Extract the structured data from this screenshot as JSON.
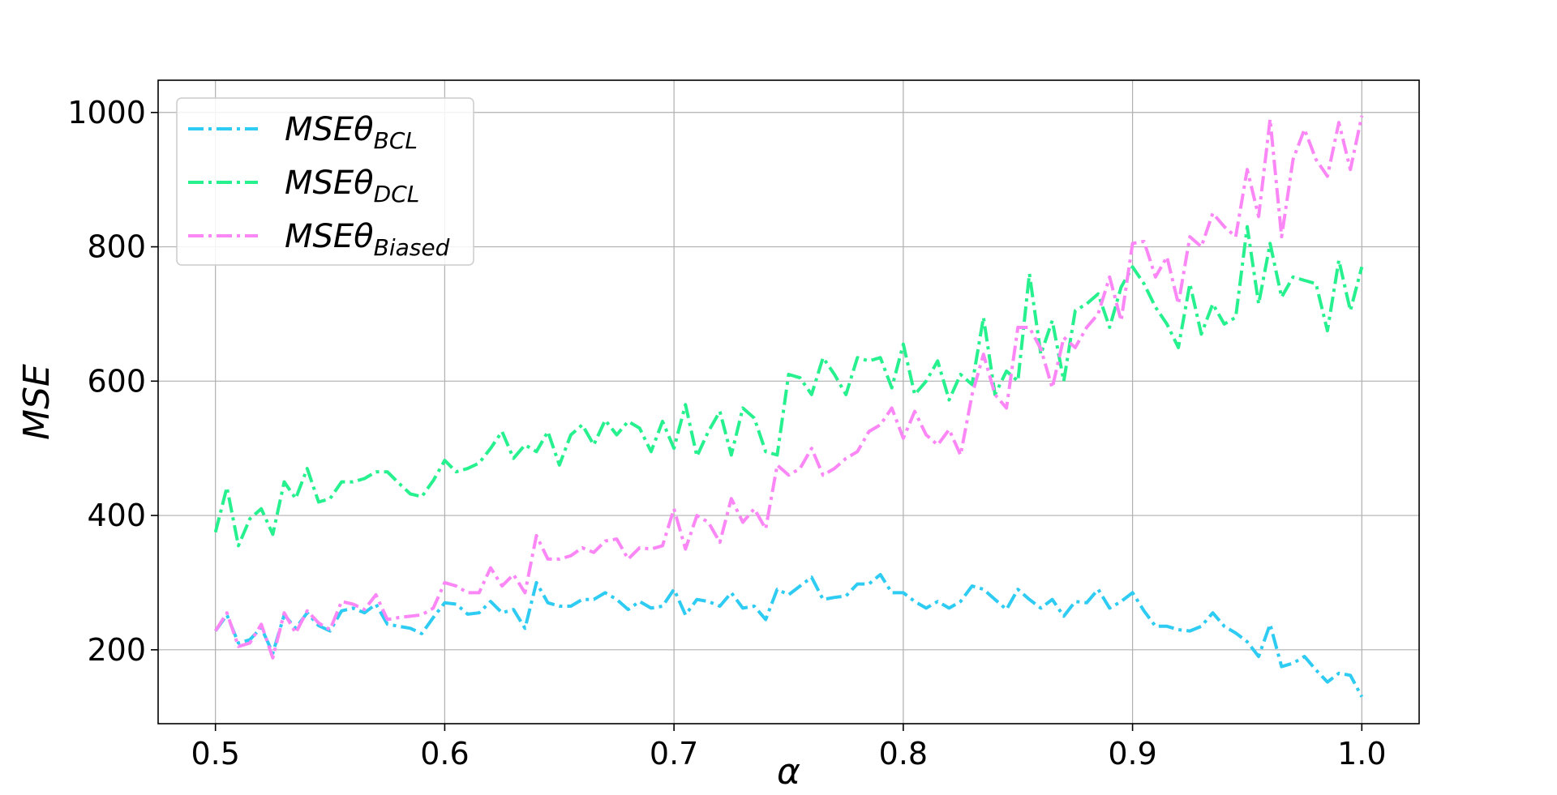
{
  "chart_data": {
    "type": "line",
    "title": "",
    "xlabel": "α",
    "ylabel": "MSE",
    "xlim": [
      0.475,
      1.025
    ],
    "ylim": [
      90,
      1048
    ],
    "xticks": [
      0.5,
      0.6,
      0.7,
      0.8,
      0.9,
      1.0
    ],
    "xtick_labels": [
      "0.5",
      "0.6",
      "0.7",
      "0.8",
      "0.9",
      "1.0"
    ],
    "yticks": [
      200,
      400,
      600,
      800,
      1000
    ],
    "ytick_labels": [
      "200",
      "400",
      "600",
      "800",
      "1000"
    ],
    "grid": true,
    "legend_position": "top-left",
    "x": [
      0.5,
      0.505,
      0.51,
      0.515,
      0.52,
      0.525,
      0.53,
      0.535,
      0.54,
      0.545,
      0.55,
      0.555,
      0.56,
      0.565,
      0.57,
      0.575,
      0.58,
      0.585,
      0.59,
      0.595,
      0.6,
      0.605,
      0.61,
      0.615,
      0.62,
      0.625,
      0.63,
      0.635,
      0.64,
      0.645,
      0.65,
      0.655,
      0.66,
      0.665,
      0.67,
      0.675,
      0.68,
      0.685,
      0.69,
      0.695,
      0.7,
      0.705,
      0.71,
      0.715,
      0.72,
      0.725,
      0.73,
      0.735,
      0.74,
      0.745,
      0.75,
      0.755,
      0.76,
      0.765,
      0.77,
      0.775,
      0.78,
      0.785,
      0.79,
      0.795,
      0.8,
      0.805,
      0.81,
      0.815,
      0.82,
      0.825,
      0.83,
      0.835,
      0.84,
      0.845,
      0.85,
      0.855,
      0.86,
      0.865,
      0.87,
      0.875,
      0.88,
      0.885,
      0.89,
      0.895,
      0.9,
      0.905,
      0.91,
      0.915,
      0.92,
      0.925,
      0.93,
      0.935,
      0.94,
      0.945,
      0.95,
      0.955,
      0.96,
      0.965,
      0.97,
      0.975,
      0.98,
      0.985,
      0.99,
      0.995,
      1.0
    ],
    "series": [
      {
        "name_main": "MSEθ",
        "name_sub": "BCL",
        "color": "#2ecbf2",
        "values": [
          228,
          252,
          210,
          215,
          233,
          195,
          252,
          232,
          255,
          236,
          228,
          258,
          262,
          255,
          268,
          238,
          235,
          232,
          224,
          248,
          270,
          268,
          253,
          255,
          272,
          255,
          260,
          232,
          300,
          270,
          265,
          265,
          275,
          275,
          285,
          275,
          260,
          272,
          262,
          265,
          290,
          252,
          275,
          272,
          265,
          285,
          262,
          265,
          245,
          290,
          282,
          295,
          308,
          275,
          278,
          280,
          298,
          298,
          312,
          285,
          285,
          272,
          262,
          272,
          262,
          272,
          295,
          290,
          275,
          260,
          290,
          275,
          262,
          275,
          250,
          272,
          270,
          290,
          262,
          272,
          285,
          258,
          235,
          235,
          230,
          228,
          235,
          255,
          235,
          225,
          212,
          190,
          238,
          175,
          180,
          190,
          170,
          152,
          165,
          162,
          130
        ]
      },
      {
        "name_main": "MSEθ",
        "name_sub": "DCL",
        "color": "#27f08e",
        "values": [
          375,
          442,
          355,
          395,
          410,
          372,
          450,
          425,
          470,
          420,
          425,
          450,
          450,
          455,
          465,
          465,
          448,
          432,
          428,
          452,
          482,
          465,
          470,
          478,
          500,
          525,
          485,
          505,
          495,
          525,
          475,
          520,
          535,
          505,
          542,
          520,
          540,
          530,
          495,
          540,
          500,
          565,
          488,
          525,
          555,
          490,
          560,
          545,
          495,
          490,
          610,
          605,
          580,
          635,
          610,
          580,
          635,
          630,
          635,
          590,
          655,
          580,
          600,
          630,
          572,
          610,
          595,
          695,
          580,
          615,
          600,
          760,
          640,
          690,
          600,
          705,
          715,
          730,
          680,
          740,
          770,
          745,
          710,
          685,
          650,
          745,
          670,
          715,
          685,
          695,
          830,
          715,
          805,
          725,
          755,
          750,
          745,
          675,
          780,
          705,
          770
        ]
      },
      {
        "name_main": "MSEθ",
        "name_sub": "Biased",
        "color": "#fb86f6",
        "values": [
          228,
          255,
          205,
          210,
          238,
          188,
          255,
          225,
          258,
          240,
          230,
          272,
          268,
          260,
          282,
          245,
          248,
          250,
          252,
          262,
          300,
          295,
          285,
          285,
          322,
          295,
          312,
          285,
          370,
          335,
          335,
          340,
          352,
          345,
          362,
          365,
          335,
          352,
          350,
          355,
          410,
          350,
          400,
          390,
          360,
          425,
          390,
          410,
          380,
          475,
          460,
          470,
          500,
          460,
          470,
          485,
          495,
          525,
          535,
          560,
          515,
          555,
          520,
          505,
          528,
          490,
          580,
          640,
          580,
          560,
          680,
          680,
          648,
          590,
          665,
          650,
          680,
          700,
          755,
          690,
          805,
          808,
          755,
          785,
          715,
          815,
          800,
          850,
          830,
          815,
          915,
          845,
          990,
          815,
          930,
          975,
          930,
          905,
          985,
          915,
          995
        ]
      }
    ]
  }
}
